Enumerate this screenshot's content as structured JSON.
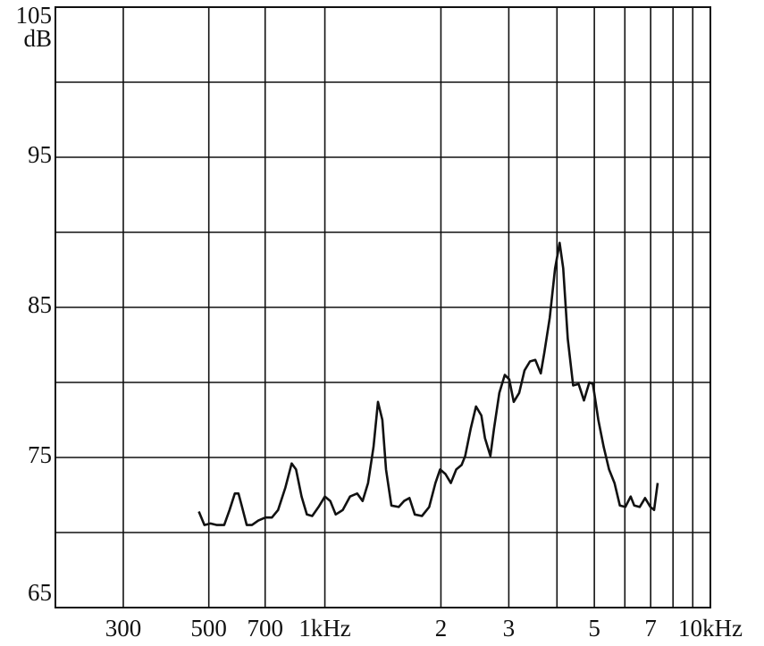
{
  "chart_data": {
    "type": "line",
    "ylabel": "dB",
    "log_x": true,
    "grid": true,
    "color": "#111111",
    "xlim": [
      200,
      10000
    ],
    "ylim": [
      65,
      105
    ],
    "xticks": [
      300,
      500,
      700,
      {
        "value": 1000,
        "label": "1kHz"
      },
      {
        "value": 2000,
        "label": "2"
      },
      {
        "value": 3000,
        "label": "3"
      },
      {
        "value": 5000,
        "label": "5"
      },
      {
        "value": 7000,
        "label": "7"
      },
      {
        "value": 10000,
        "label": "10kHz"
      }
    ],
    "x_minor_grid": [
      4000,
      6000,
      8000,
      9000
    ],
    "yticks": [
      65,
      75,
      85,
      95,
      105
    ],
    "y_minor_grid": [
      70,
      80,
      90,
      100
    ],
    "x": [
      471,
      487,
      505,
      525,
      548,
      566,
      584,
      597,
      610,
      627,
      647,
      672,
      701,
      729,
      756,
      790,
      820,
      842,
      870,
      898,
      927,
      963,
      1000,
      1033,
      1067,
      1113,
      1162,
      1213,
      1253,
      1294,
      1337,
      1373,
      1410,
      1441,
      1488,
      1554,
      1605,
      1657,
      1711,
      1786,
      1865,
      1936,
      1990,
      2055,
      2122,
      2192,
      2263,
      2312,
      2388,
      2466,
      2547,
      2602,
      2687,
      2746,
      2835,
      2928,
      3008,
      3090,
      3192,
      3296,
      3404,
      3516,
      3631,
      3710,
      3831,
      3956,
      4064,
      4152,
      4266,
      4406,
      4550,
      4699,
      4853,
      4958,
      5120,
      5288,
      5461,
      5640,
      5824,
      6015,
      6212,
      6347,
      6555,
      6769,
      6991,
      7145,
      7300
    ],
    "values": [
      71.4,
      70.5,
      70.6,
      70.5,
      70.5,
      71.5,
      72.6,
      72.6,
      71.7,
      70.5,
      70.5,
      70.8,
      71.0,
      71.0,
      71.5,
      73.0,
      74.6,
      74.2,
      72.4,
      71.2,
      71.1,
      71.7,
      72.4,
      72.1,
      71.2,
      71.5,
      72.4,
      72.6,
      72.1,
      73.3,
      75.7,
      78.7,
      77.5,
      74.2,
      71.8,
      71.7,
      72.1,
      72.3,
      71.2,
      71.1,
      71.7,
      73.3,
      74.2,
      73.9,
      73.3,
      74.2,
      74.5,
      75.1,
      76.9,
      78.4,
      77.8,
      76.3,
      75.1,
      76.9,
      79.3,
      80.5,
      80.2,
      78.7,
      79.3,
      80.8,
      81.4,
      81.5,
      80.6,
      82.0,
      84.3,
      87.6,
      89.3,
      87.6,
      82.9,
      79.8,
      79.9,
      78.8,
      80.0,
      79.9,
      77.5,
      75.7,
      74.2,
      73.3,
      71.8,
      71.7,
      72.4,
      71.8,
      71.7,
      72.3,
      71.7,
      71.5,
      73.3
    ]
  }
}
